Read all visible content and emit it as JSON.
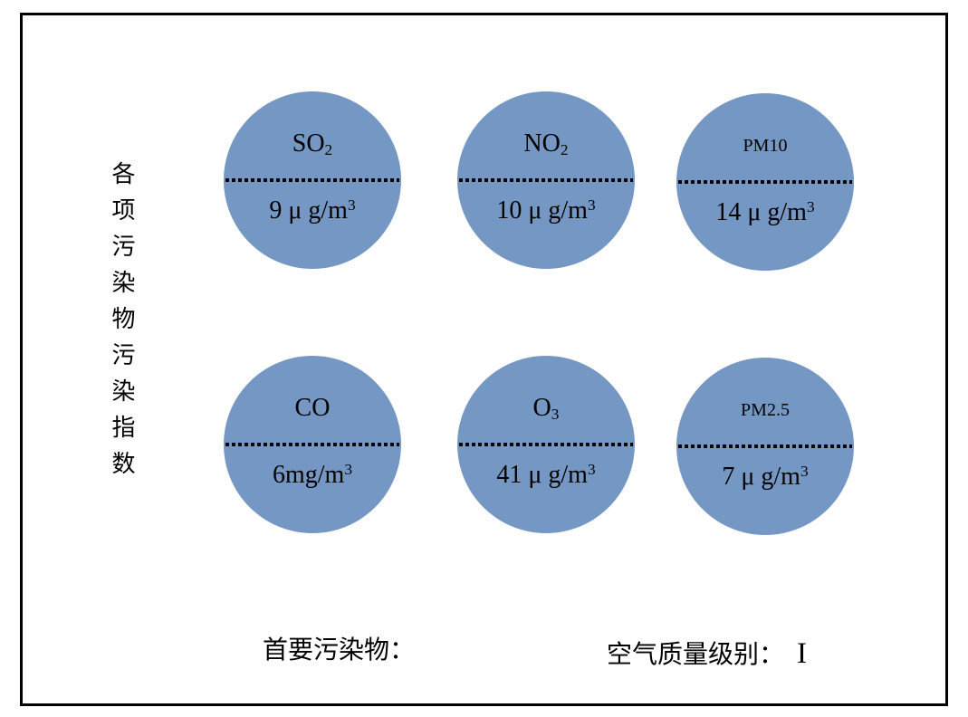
{
  "sidebar": {
    "vertical_title": "各项污染物污染指数"
  },
  "circles": [
    {
      "id": "so2",
      "name_base": "SO",
      "name_sub": "2",
      "value_base": "9 μ g/m",
      "value_sup": "3"
    },
    {
      "id": "no2",
      "name_base": "NO",
      "name_sub": "2",
      "value_base": "10 μ g/m",
      "value_sup": "3"
    },
    {
      "id": "pm10",
      "name_base": "PM10",
      "name_sub": "",
      "value_base": "14 μ g/m",
      "value_sup": "3"
    },
    {
      "id": "co",
      "name_base": "CO",
      "name_sub": "",
      "value_base": "6mg/m",
      "value_sup": "3"
    },
    {
      "id": "o3",
      "name_base": "O",
      "name_sub": "3",
      "value_base": "41 μ g/m",
      "value_sup": "3"
    },
    {
      "id": "pm25",
      "name_base": "PM2.5",
      "name_sub": "",
      "value_base": "7 μ g/m",
      "value_sup": "3"
    }
  ],
  "footer": {
    "primary_pollutant_label": "首要污染物：",
    "air_quality_label": "空气质量级别：",
    "air_quality_value": "I"
  },
  "colors": {
    "circle_fill": "#7497c4",
    "divider_line": "#000000",
    "frame_border": "#000000",
    "background": "#ffffff"
  }
}
